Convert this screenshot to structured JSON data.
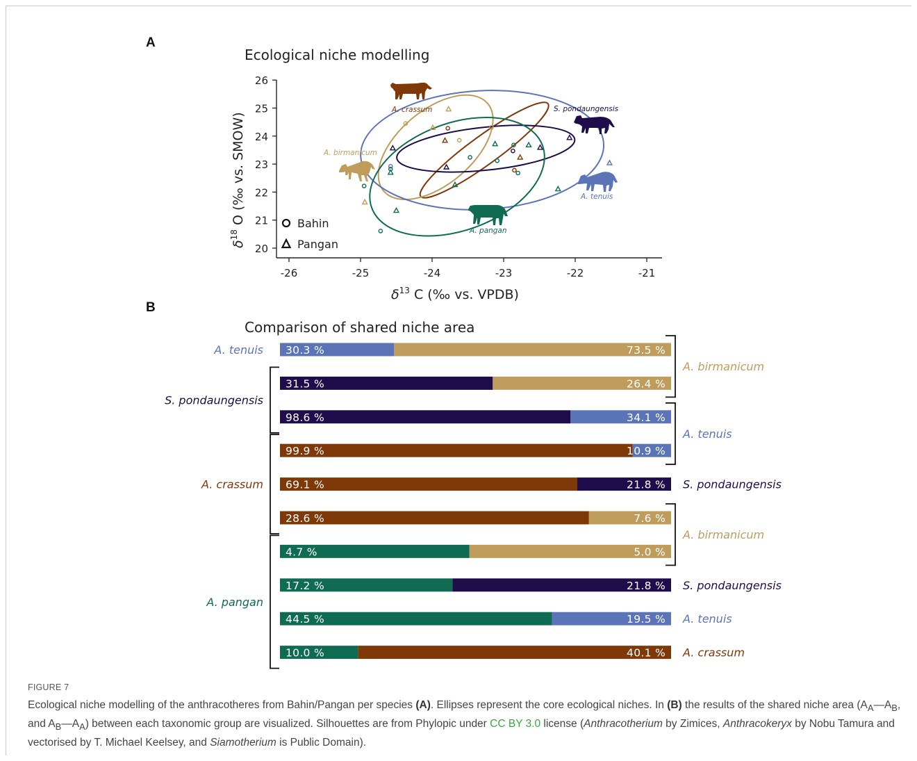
{
  "figure": {
    "label": "FIGURE 7",
    "caption": {
      "p1": "Ecological niche modelling of the anthracotheres from Bahin/Pangan per species ",
      "b1": "(A)",
      "p2": ". Ellipses represent the core ecological niches. In ",
      "b2": "(B)",
      "p3": " the results of the shared niche area (A",
      "sub1": "A",
      "p4": "—A",
      "sub2": "B",
      "p5": ", and A",
      "sub3": "B",
      "p6": "—A",
      "sub4": "A",
      "p7": ") between each taxonomic group are visualized. Silhouettes are from Phylopic under ",
      "link": "CC BY 3.0",
      "p8": " license (",
      "i1": "Anthracotherium",
      "p9": " by Zimices, ",
      "i2": "Anthracokeryx",
      "p10": " by Nobu Tamura and vectorised by T. Michael Keelsey, and ",
      "i3": "Siamotherium",
      "p11": " is Public Domain)."
    }
  },
  "colors": {
    "tenuis": "#5b74b8",
    "birmanicum": "#bf9c5c",
    "pondaungensis": "#1f0c4a",
    "crassum": "#7f3808",
    "pangan": "#0f6b52"
  },
  "chart_data": [
    {
      "panel": "A",
      "type": "scatter",
      "title": "Ecological niche modelling",
      "xlabel_delta": "δ",
      "xlabel_sup": "13",
      "xlabel_rest": " C (‰ vs. VPDB)",
      "ylabel_delta": "δ",
      "ylabel_sup": "18",
      "ylabel_rest": " O (‰ vs. SMOW)",
      "xlim": [
        -26,
        -21
      ],
      "ylim": [
        20,
        26
      ],
      "xticks": [
        "-26",
        "-25",
        "-24",
        "-23",
        "-22",
        "-21"
      ],
      "yticks": [
        "20",
        "21",
        "22",
        "23",
        "24",
        "25",
        "26"
      ],
      "legend": [
        {
          "marker": "circle",
          "label": "Bahin"
        },
        {
          "marker": "triangle",
          "label": "Pangan"
        }
      ],
      "series": [
        {
          "name": "A. crassum",
          "color_key": "crassum",
          "ellipse": {
            "cx": -23.27,
            "cy": 23.5,
            "rx": 1.1,
            "ry": 0.2,
            "angle": -36
          },
          "points": [
            {
              "x": -23.78,
              "y": 24.28,
              "m": "circle"
            },
            {
              "x": -22.85,
              "y": 22.78,
              "m": "circle"
            },
            {
              "x": -23.82,
              "y": 23.84,
              "m": "triangle"
            },
            {
              "x": -22.77,
              "y": 23.24,
              "m": "triangle"
            }
          ]
        },
        {
          "name": "A. birmanicum",
          "color_key": "birmanicum",
          "ellipse": {
            "cx": -23.95,
            "cy": 23.6,
            "rx": 0.95,
            "ry": 0.52,
            "angle": -40
          },
          "points": [
            {
              "x": -24.37,
              "y": 24.45,
              "m": "circle"
            },
            {
              "x": -23.62,
              "y": 23.85,
              "m": "circle"
            },
            {
              "x": -23.17,
              "y": 24.31,
              "m": "circle"
            },
            {
              "x": -23.99,
              "y": 24.3,
              "m": "triangle"
            },
            {
              "x": -24.94,
              "y": 21.64,
              "m": "triangle"
            },
            {
              "x": -23.77,
              "y": 24.96,
              "m": "triangle"
            }
          ]
        },
        {
          "name": "S. pondaungensis",
          "color_key": "pondaungensis",
          "ellipse": {
            "cx": -23.25,
            "cy": 23.55,
            "rx": 1.25,
            "ry": 0.3,
            "angle": -6
          },
          "points": [
            {
              "x": -22.87,
              "y": 23.47,
              "m": "circle"
            },
            {
              "x": -24.55,
              "y": 23.57,
              "m": "triangle"
            },
            {
              "x": -23.8,
              "y": 22.89,
              "m": "triangle"
            },
            {
              "x": -22.49,
              "y": 23.59,
              "m": "triangle"
            },
            {
              "x": -22.08,
              "y": 23.94,
              "m": "triangle"
            }
          ]
        },
        {
          "name": "A. tenuis",
          "color_key": "tenuis",
          "ellipse": {
            "cx": -23.3,
            "cy": 23.5,
            "rx": 1.7,
            "ry": 0.83,
            "angle": -3
          },
          "points": [
            {
              "x": -24.58,
              "y": 22.92,
              "m": "circle"
            },
            {
              "x": -21.52,
              "y": 23.04,
              "m": "triangle"
            }
          ]
        },
        {
          "name": "A. pangan",
          "color_key": "pangan",
          "ellipse": {
            "cx": -23.65,
            "cy": 22.55,
            "rx": 1.27,
            "ry": 0.75,
            "angle": -20
          },
          "points": [
            {
              "x": -24.95,
              "y": 22.22,
              "m": "circle"
            },
            {
              "x": -24.58,
              "y": 22.82,
              "m": "circle"
            },
            {
              "x": -24.72,
              "y": 20.61,
              "m": "circle"
            },
            {
              "x": -23.47,
              "y": 23.24,
              "m": "circle"
            },
            {
              "x": -23.09,
              "y": 23.12,
              "m": "circle"
            },
            {
              "x": -22.86,
              "y": 23.68,
              "m": "circle"
            },
            {
              "x": -22.8,
              "y": 22.68,
              "m": "circle"
            },
            {
              "x": -24.58,
              "y": 22.7,
              "m": "triangle"
            },
            {
              "x": -24.5,
              "y": 21.34,
              "m": "triangle"
            },
            {
              "x": -23.68,
              "y": 22.26,
              "m": "triangle"
            },
            {
              "x": -23.12,
              "y": 23.72,
              "m": "triangle"
            },
            {
              "x": -22.65,
              "y": 23.68,
              "m": "triangle"
            },
            {
              "x": -22.24,
              "y": 22.11,
              "m": "triangle"
            }
          ]
        }
      ]
    },
    {
      "panel": "B",
      "type": "bar",
      "stacked": true,
      "orientation": "horizontal",
      "title": "Comparison of shared niche area",
      "rows": [
        {
          "left": "tenuis",
          "right": "birmanicum",
          "left_value": 30.3,
          "right_value": 73.5,
          "left_label": "30.3 %",
          "right_label": "73.5 %"
        },
        {
          "left": "pondaungensis",
          "right": "birmanicum",
          "left_value": 31.5,
          "right_value": 26.4,
          "left_label": "31.5 %",
          "right_label": "26.4 %"
        },
        {
          "left": "pondaungensis",
          "right": "tenuis",
          "left_value": 98.6,
          "right_value": 34.1,
          "left_label": "98.6 %",
          "right_label": "34.1 %"
        },
        {
          "left": "crassum",
          "right": "tenuis",
          "left_value": 99.9,
          "right_value": 10.9,
          "left_label": "99.9 %",
          "right_label": "10.9 %"
        },
        {
          "left": "crassum",
          "right": "pondaungensis",
          "left_value": 69.1,
          "right_value": 21.8,
          "left_label": "69.1 %",
          "right_label": "21.8 %"
        },
        {
          "left": "crassum",
          "right": "birmanicum",
          "left_value": 28.6,
          "right_value": 7.6,
          "left_label": "28.6 %",
          "right_label": "7.6 %"
        },
        {
          "left": "pangan",
          "right": "birmanicum",
          "left_value": 4.7,
          "right_value": 5.0,
          "left_label": "4.7 %",
          "right_label": "5.0 %"
        },
        {
          "left": "pangan",
          "right": "pondaungensis",
          "left_value": 17.2,
          "right_value": 21.8,
          "left_label": "17.2 %",
          "right_label": "21.8 %"
        },
        {
          "left": "pangan",
          "right": "tenuis",
          "left_value": 44.5,
          "right_value": 19.5,
          "left_label": "44.5 %",
          "right_label": "19.5 %"
        },
        {
          "left": "pangan",
          "right": "crassum",
          "left_value": 10.0,
          "right_value": 40.1,
          "left_label": "10.0 %",
          "right_label": "40.1 %"
        }
      ],
      "left_groups": [
        {
          "species": "tenuis",
          "label": "A. tenuis",
          "rows": [
            0
          ]
        },
        {
          "species": "pondaungensis",
          "label": "S. pondaungensis",
          "rows": [
            1,
            2
          ]
        },
        {
          "species": "crassum",
          "label": "A. crassum",
          "rows": [
            3,
            4,
            5
          ]
        },
        {
          "species": "pangan",
          "label": "A. pangan",
          "rows": [
            6,
            7,
            8,
            9
          ]
        }
      ],
      "right_groups": [
        {
          "species": "birmanicum",
          "label": "A. birmanicum",
          "rows": [
            0,
            1
          ]
        },
        {
          "species": "tenuis",
          "label": "A. tenuis",
          "rows": [
            2,
            3
          ]
        },
        {
          "species": "pondaungensis",
          "label": "S. pondaungensis",
          "rows": [
            4
          ]
        },
        {
          "species": "birmanicum",
          "label": "A. birmanicum",
          "rows": [
            5,
            6
          ]
        },
        {
          "species": "pondaungensis",
          "label": "S. pondaungensis",
          "rows": [
            7
          ]
        },
        {
          "species": "tenuis",
          "label": "A. tenuis",
          "rows": [
            8
          ]
        },
        {
          "species": "crassum",
          "label": "A. crassum",
          "rows": [
            9
          ]
        }
      ]
    }
  ]
}
